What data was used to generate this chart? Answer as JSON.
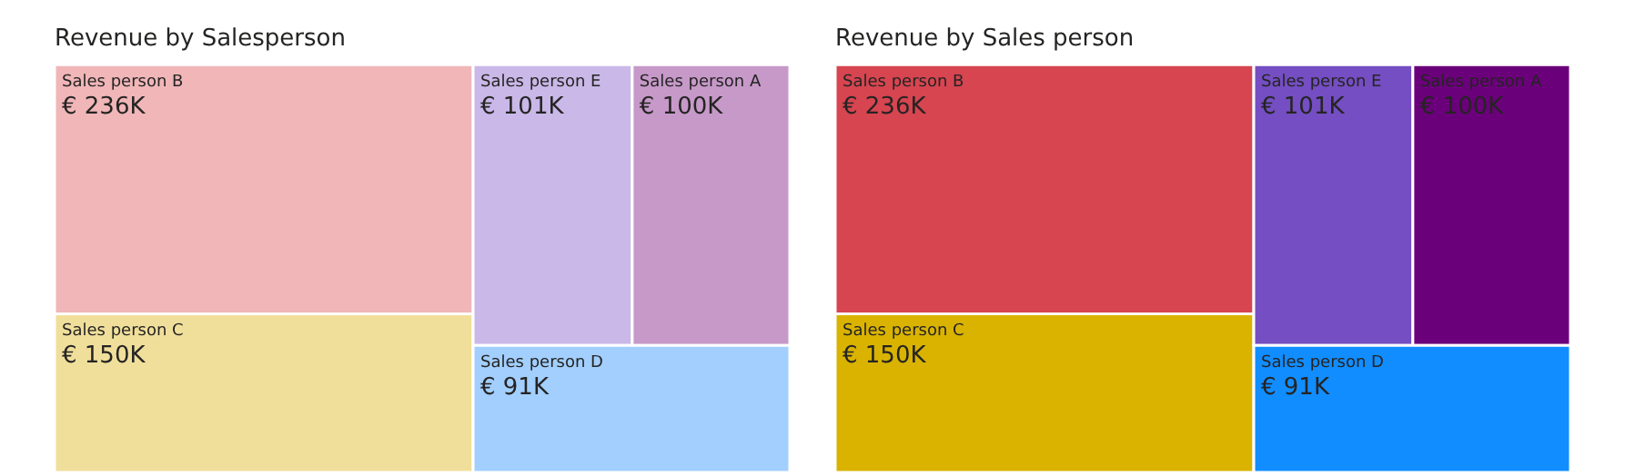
{
  "chart_data": [
    {
      "type": "other",
      "title": "Revenue by Salesperson",
      "categories": [
        "Sales person B",
        "Sales person C",
        "Sales person E",
        "Sales person A",
        "Sales person D"
      ],
      "values": [
        236,
        150,
        101,
        100,
        91
      ],
      "value_labels": [
        "€ 236K",
        "€ 150K",
        "€ 101K",
        "€ 100K",
        "€ 91K"
      ],
      "colors": [
        "#f0b6b8",
        "#f0df9b",
        "#c9b8e8",
        "#c699c9",
        "#a2cffe"
      ]
    },
    {
      "type": "other",
      "title": "Revenue by Sales person",
      "categories": [
        "Sales person B",
        "Sales person C",
        "Sales person E",
        "Sales person A",
        "Sales person D"
      ],
      "values": [
        236,
        150,
        101,
        100,
        91
      ],
      "value_labels": [
        "€ 236K",
        "€ 150K",
        "€ 101K",
        "€ 100K",
        "€ 91K"
      ],
      "colors": [
        "#d64550",
        "#d9b300",
        "#744ec2",
        "#6b007b",
        "#118dff"
      ]
    }
  ]
}
